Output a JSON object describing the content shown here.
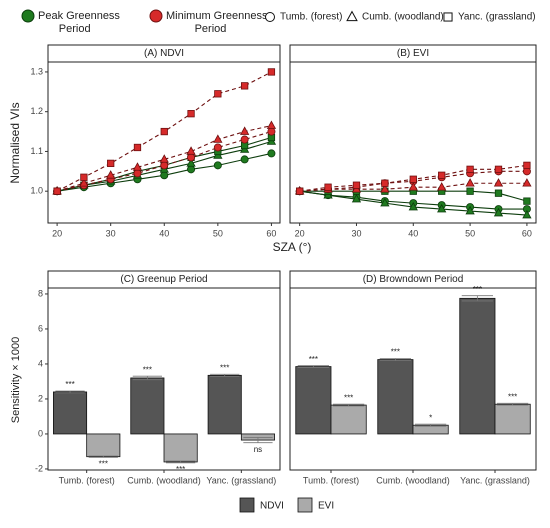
{
  "chart_data": [
    {
      "type": "line",
      "title": "(A) NDVI",
      "xlabel": "SZA (°)",
      "ylabel": "Normalised VIs",
      "x": [
        20,
        25,
        30,
        35,
        40,
        45,
        50,
        55,
        60
      ],
      "xlim": [
        18.3,
        61.6
      ],
      "xticks": [
        20,
        30,
        40,
        50,
        60
      ],
      "ylim": [
        0.92,
        1.325
      ],
      "yticks": [
        {
          "value": 1.0,
          "label": "1.0"
        },
        1.1,
        1.2,
        1.3
      ],
      "sites": [
        {
          "name": "Tumb. (forest)",
          "marker": "circle"
        },
        {
          "name": "Cumb. (woodland)",
          "marker": "triangle"
        },
        {
          "name": "Yanc. (grassland)",
          "marker": "square"
        }
      ],
      "series": [
        {
          "name": "Peak Greenness Period",
          "color": "#1f7a1f",
          "dashed": false,
          "values": [
            [
              1.0,
              1.01,
              1.02,
              1.03,
              1.04,
              1.055,
              1.065,
              1.08,
              1.095
            ],
            [
              1.0,
              1.015,
              1.025,
              1.04,
              1.055,
              1.07,
              1.09,
              1.105,
              1.125
            ],
            [
              1.0,
              1.015,
              1.03,
              1.05,
              1.065,
              1.085,
              1.1,
              1.115,
              1.135
            ]
          ]
        },
        {
          "name": "Minimum Greenness Period",
          "color": "#d62a2a",
          "dashed": true,
          "values": [
            [
              1.0,
              1.015,
              1.03,
              1.045,
              1.065,
              1.085,
              1.11,
              1.13,
              1.15
            ],
            [
              1.0,
              1.02,
              1.04,
              1.06,
              1.08,
              1.1,
              1.13,
              1.15,
              1.165
            ],
            [
              1.0,
              1.035,
              1.07,
              1.11,
              1.15,
              1.195,
              1.245,
              1.265,
              1.3
            ]
          ]
        }
      ]
    },
    {
      "type": "line",
      "title": "(B) EVI",
      "x": [
        20,
        25,
        30,
        35,
        40,
        45,
        50,
        55,
        60
      ],
      "xlim": [
        18.3,
        61.6
      ],
      "xticks": [
        20,
        30,
        40,
        50,
        60
      ],
      "ylim": [
        0.92,
        1.325
      ],
      "series": [
        {
          "color": "#1f7a1f",
          "dashed": false,
          "values": [
            [
              1.0,
              0.99,
              0.985,
              0.975,
              0.97,
              0.965,
              0.96,
              0.955,
              0.955
            ],
            [
              1.0,
              0.99,
              0.98,
              0.97,
              0.96,
              0.955,
              0.95,
              0.945,
              0.94
            ],
            [
              1.0,
              1.0,
              1.0,
              1.0,
              1.0,
              1.0,
              1.0,
              0.995,
              0.975
            ]
          ]
        },
        {
          "color": "#d62a2a",
          "dashed": true,
          "values": [
            [
              1.0,
              1.005,
              1.01,
              1.02,
              1.025,
              1.035,
              1.045,
              1.05,
              1.05
            ],
            [
              1.0,
              1.005,
              1.005,
              1.005,
              1.01,
              1.01,
              1.02,
              1.02,
              1.02
            ],
            [
              1.0,
              1.01,
              1.015,
              1.02,
              1.03,
              1.04,
              1.055,
              1.055,
              1.065
            ]
          ]
        }
      ]
    },
    {
      "type": "bar",
      "title": "(C) Greenup Period",
      "ylabel": "Sensitivity × 1000",
      "categories": [
        "Tumb. (forest)",
        "Cumb. (woodland)",
        "Yanc. (grassland)"
      ],
      "ylim": [
        -2.06,
        8.34
      ],
      "yticks": [
        -2,
        0,
        2,
        4,
        6,
        8
      ],
      "series": [
        {
          "name": "NDVI",
          "color": "#555555",
          "values": [
            2.4,
            3.2,
            3.35
          ],
          "errors": [
            0.05,
            0.1,
            0.06
          ],
          "significance": [
            "***",
            "***",
            "***"
          ]
        },
        {
          "name": "EVI",
          "color": "#aaaaaa",
          "values": [
            -1.3,
            -1.6,
            -0.35
          ],
          "errors": [
            0.04,
            0.05,
            0.15
          ],
          "significance": [
            "***",
            "***",
            "ns"
          ]
        }
      ]
    },
    {
      "type": "bar",
      "title": "(D) Browndown Period",
      "categories": [
        "Tumb. (forest)",
        "Cumb. (woodland)",
        "Yanc. (grassland)"
      ],
      "ylim": [
        -2.06,
        8.34
      ],
      "series": [
        {
          "color": "#555555",
          "values": [
            3.85,
            4.25,
            7.75
          ],
          "errors": [
            0.05,
            0.06,
            0.15
          ],
          "significance": [
            "***",
            "***",
            "***"
          ]
        },
        {
          "color": "#aaaaaa",
          "values": [
            1.65,
            0.5,
            1.7
          ],
          "errors": [
            0.05,
            0.06,
            0.05
          ],
          "significance": [
            "***",
            "*",
            "***"
          ]
        }
      ]
    }
  ]
}
